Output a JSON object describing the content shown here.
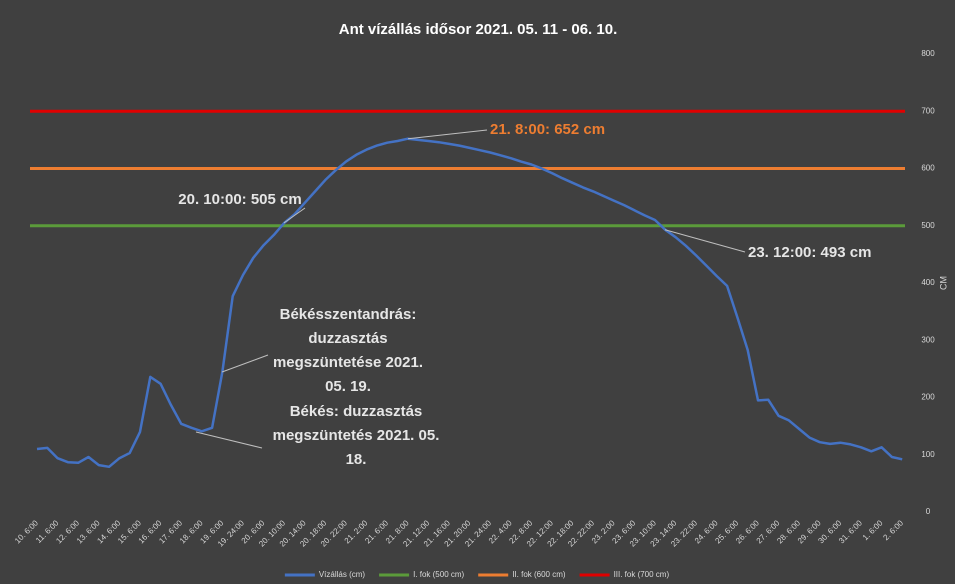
{
  "chart_data": {
    "type": "line",
    "title": "Ant vízállás idősor 2021. 05. 11 - 06. 10.",
    "y_label": "CM",
    "ylim": [
      0,
      800
    ],
    "yticks": [
      0,
      100,
      200,
      300,
      400,
      500,
      600,
      700,
      800
    ],
    "grid": false,
    "legend": "bottom",
    "categories": [
      "10. 6:00",
      null,
      "11. 6:00",
      null,
      "12. 6:00",
      null,
      "13. 6:00",
      null,
      "14. 6:00",
      null,
      "15. 6:00",
      null,
      "16. 6:00",
      null,
      "17. 6:00",
      null,
      "18. 6:00",
      null,
      "19. 6:00",
      null,
      "19. 24:00",
      null,
      "20. 6:00",
      null,
      "20. 10:00",
      null,
      "20. 14:00",
      null,
      "20. 18:00",
      null,
      "20. 22:00",
      null,
      "21. 2:00",
      null,
      "21. 6:00",
      null,
      "21. 8:00",
      null,
      "21. 12:00",
      null,
      "21. 16:00",
      null,
      "21. 20:00",
      null,
      "21. 24:00",
      null,
      "22. 4:00",
      null,
      "22. 8:00",
      null,
      "22. 12:00",
      null,
      "22. 18:00",
      null,
      "22. 22:00",
      null,
      "23. 2:00",
      null,
      "23. 6:00",
      null,
      "23. 10:00",
      null,
      "23. 14:00",
      null,
      "23. 22:00",
      null,
      "24. 6:00",
      null,
      "25. 6:00",
      null,
      "26. 6:00",
      null,
      "27. 6:00",
      null,
      "28. 6:00",
      null,
      "29. 6:00",
      null,
      "30. 6:00",
      null,
      "31. 6:00",
      null,
      "1. 6:00",
      null,
      "2. 6:00"
    ],
    "series": [
      {
        "name": "Vízállás (cm)",
        "color": "#4472c4",
        "values": [
          110,
          112,
          94,
          87,
          86,
          96,
          82,
          79,
          94,
          103,
          140,
          236,
          224,
          187,
          154,
          147,
          141,
          147,
          245,
          377,
          414,
          444,
          466,
          484,
          505,
          520,
          540,
          560,
          580,
          597,
          612,
          624,
          633,
          640,
          645,
          648,
          652,
          650,
          648,
          646,
          643,
          640,
          636,
          632,
          628,
          623,
          618,
          612,
          607,
          600,
          592,
          583,
          575,
          567,
          560,
          552,
          544,
          536,
          527,
          518,
          510,
          493,
          480,
          465,
          448,
          430,
          412,
          395,
          340,
          283,
          195,
          196,
          168,
          160,
          145,
          130,
          122,
          119,
          121,
          118,
          113,
          106,
          113,
          96,
          92
        ]
      }
    ],
    "hlines": [
      {
        "name": "I. fok (500 cm)",
        "value": 500,
        "color": "#5b9b3a"
      },
      {
        "name": "II. fok (600 cm)",
        "value": 600,
        "color": "#ed7d31"
      },
      {
        "name": "III. fok (700 cm)",
        "value": 700,
        "color": "#e00000"
      }
    ],
    "annotations": [
      {
        "text": [
          "21. 8:00: 652 cm"
        ],
        "color": "#ed7d31"
      },
      {
        "text": [
          "20. 10:00: 505 cm"
        ]
      },
      {
        "text": [
          "23. 12:00: 493 cm"
        ]
      },
      {
        "text": [
          "Békésszentandrás:",
          "duzzasztás",
          "megszüntetése 2021.",
          "05. 19."
        ]
      },
      {
        "text": [
          "Békés: duzzasztás",
          "megszüntetés 2021. 05.",
          "18."
        ]
      }
    ]
  }
}
